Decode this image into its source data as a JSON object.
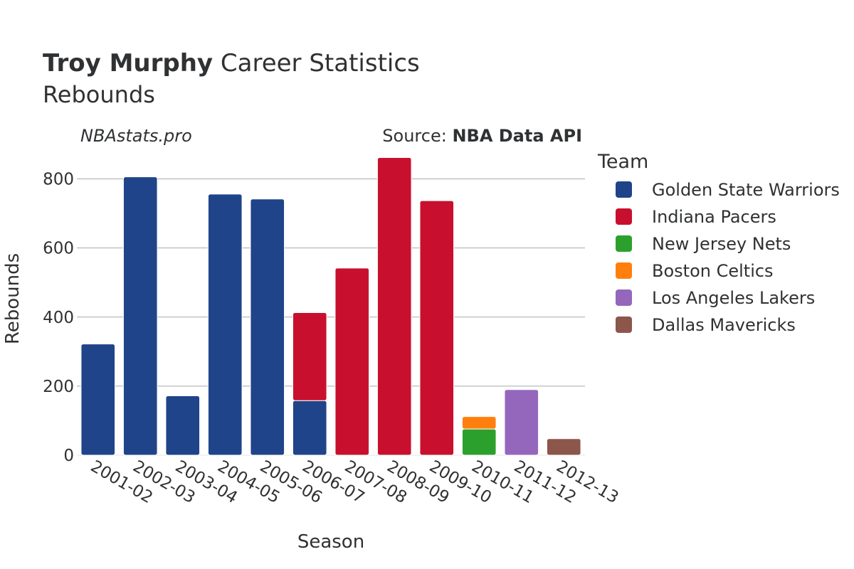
{
  "header": {
    "title_bold": "Troy Murphy",
    "title_rest": " Career Statistics",
    "subtitle": "Rebounds",
    "watermark": "NBAstats.pro",
    "source_prefix": "Source: ",
    "source_name": "NBA Data API"
  },
  "legend": {
    "title": "Team",
    "items": [
      {
        "label": "Golden State Warriors",
        "color": "#1f4489"
      },
      {
        "label": "Indiana Pacers",
        "color": "#c8102e"
      },
      {
        "label": "New Jersey Nets",
        "color": "#2ca02c"
      },
      {
        "label": "Boston Celtics",
        "color": "#ff7f0e"
      },
      {
        "label": "Los Angeles Lakers",
        "color": "#9467bd"
      },
      {
        "label": "Dallas Mavericks",
        "color": "#8c564b"
      }
    ]
  },
  "chart_data": {
    "type": "bar",
    "stacked": true,
    "xlabel": "Season",
    "ylabel": "Rebounds",
    "ylim": [
      0,
      900
    ],
    "yticks": [
      0,
      200,
      400,
      600,
      800
    ],
    "grid": true,
    "legend_position": "right",
    "categories": [
      "2001-02",
      "2002-03",
      "2003-04",
      "2004-05",
      "2005-06",
      "2006-07",
      "2007-08",
      "2008-09",
      "2009-10",
      "2010-11",
      "2011-12",
      "2012-13"
    ],
    "series": [
      {
        "name": "Golden State Warriors",
        "color": "#1f4489",
        "values": [
          322,
          806,
          172,
          756,
          742,
          158,
          0,
          0,
          0,
          0,
          0,
          0
        ]
      },
      {
        "name": "Indiana Pacers",
        "color": "#c8102e",
        "values": [
          0,
          0,
          0,
          0,
          0,
          255,
          542,
          862,
          737,
          0,
          0,
          0
        ]
      },
      {
        "name": "New Jersey Nets",
        "color": "#2ca02c",
        "values": [
          0,
          0,
          0,
          0,
          0,
          0,
          0,
          0,
          0,
          76,
          0,
          0
        ]
      },
      {
        "name": "Boston Celtics",
        "color": "#ff7f0e",
        "values": [
          0,
          0,
          0,
          0,
          0,
          0,
          0,
          0,
          0,
          36,
          0,
          0
        ]
      },
      {
        "name": "Los Angeles Lakers",
        "color": "#9467bd",
        "values": [
          0,
          0,
          0,
          0,
          0,
          0,
          0,
          0,
          0,
          0,
          190,
          0
        ]
      },
      {
        "name": "Dallas Mavericks",
        "color": "#8c564b",
        "values": [
          0,
          0,
          0,
          0,
          0,
          0,
          0,
          0,
          0,
          0,
          0,
          48
        ]
      }
    ]
  }
}
